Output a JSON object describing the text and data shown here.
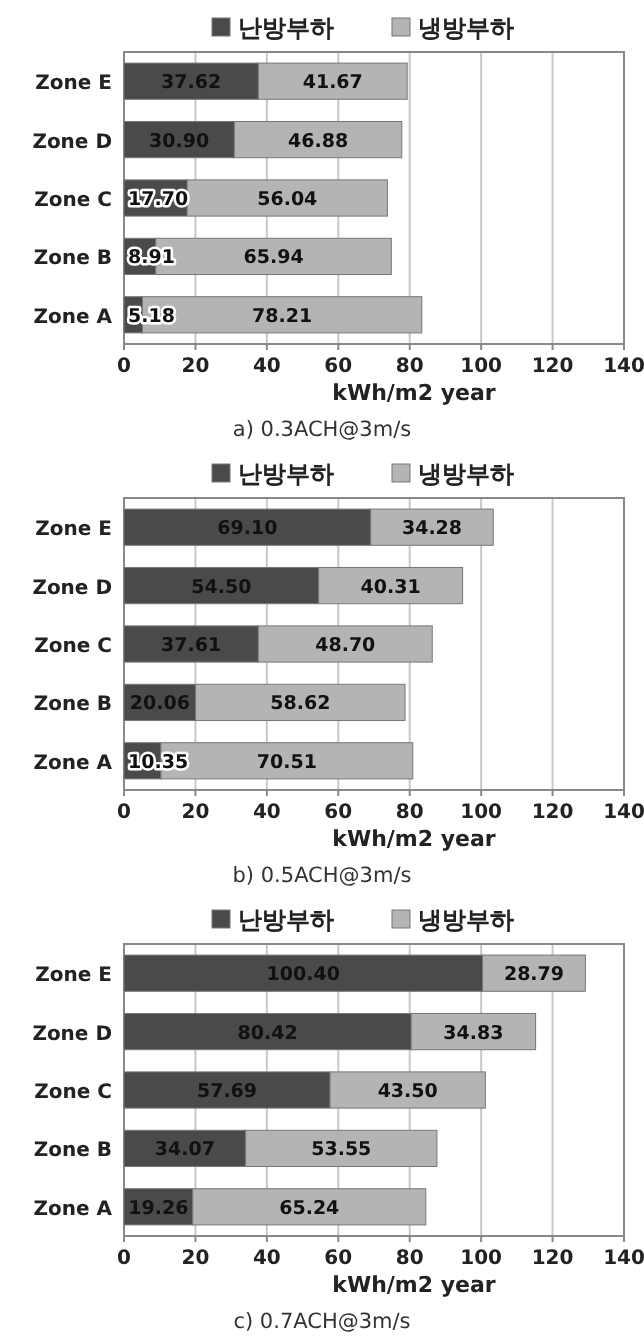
{
  "chart_data": [
    {
      "type": "bar",
      "orientation": "horizontal",
      "stacked": true,
      "categories": [
        "Zone E",
        "Zone D",
        "Zone C",
        "Zone B",
        "Zone A"
      ],
      "xlim": [
        0,
        140
      ],
      "xticks": [
        0,
        20,
        40,
        60,
        80,
        100,
        120,
        140
      ],
      "xlabel": "kWh/m2 year",
      "grid": "x",
      "legend": "top",
      "annotations": [
        "a)  0.3ACH@3m/s"
      ],
      "series": [
        {
          "name": "난방부하",
          "color": "#4a4a4a",
          "values": [
            37.62,
            30.9,
            17.7,
            8.91,
            5.18
          ],
          "value_labels": [
            "37.62",
            "30.90",
            "17.70",
            "8.91",
            "5.18"
          ]
        },
        {
          "name": "냉방부하",
          "color": "#b4b4b4",
          "values": [
            41.67,
            46.88,
            56.04,
            65.94,
            78.21
          ],
          "value_labels": [
            "41.67",
            "46.88",
            "56.04",
            "65.94",
            "78.21"
          ]
        }
      ]
    },
    {
      "type": "bar",
      "orientation": "horizontal",
      "stacked": true,
      "categories": [
        "Zone E",
        "Zone D",
        "Zone C",
        "Zone B",
        "Zone A"
      ],
      "xlim": [
        0,
        140
      ],
      "xticks": [
        0,
        20,
        40,
        60,
        80,
        100,
        120,
        140
      ],
      "xlabel": "kWh/m2 year",
      "grid": "x",
      "legend": "top",
      "annotations": [
        "b)  0.5ACH@3m/s"
      ],
      "series": [
        {
          "name": "난방부하",
          "color": "#4a4a4a",
          "values": [
            69.1,
            54.5,
            37.61,
            20.06,
            10.35
          ],
          "value_labels": [
            "69.10",
            "54.50",
            "37.61",
            "20.06",
            "10.35"
          ]
        },
        {
          "name": "냉방부하",
          "color": "#b4b4b4",
          "values": [
            34.28,
            40.31,
            48.7,
            58.62,
            70.51
          ],
          "value_labels": [
            "34.28",
            "40.31",
            "48.70",
            "58.62",
            "70.51"
          ]
        }
      ]
    },
    {
      "type": "bar",
      "orientation": "horizontal",
      "stacked": true,
      "categories": [
        "Zone E",
        "Zone D",
        "Zone C",
        "Zone B",
        "Zone A"
      ],
      "xlim": [
        0,
        140
      ],
      "xticks": [
        0,
        20,
        40,
        60,
        80,
        100,
        120,
        140
      ],
      "xlabel": "kWh/m2 year",
      "grid": "x",
      "legend": "top",
      "annotations": [
        "c)  0.7ACH@3m/s"
      ],
      "series": [
        {
          "name": "난방부하",
          "color": "#4a4a4a",
          "values": [
            100.4,
            80.42,
            57.69,
            34.07,
            19.26
          ],
          "value_labels": [
            "100.40",
            "80.42",
            "57.69",
            "34.07",
            "19.26"
          ]
        },
        {
          "name": "냉방부하",
          "color": "#b4b4b4",
          "values": [
            28.79,
            34.83,
            43.5,
            53.55,
            65.24
          ],
          "value_labels": [
            "28.79",
            "34.83",
            "43.50",
            "53.55",
            "65.24"
          ]
        }
      ]
    }
  ]
}
